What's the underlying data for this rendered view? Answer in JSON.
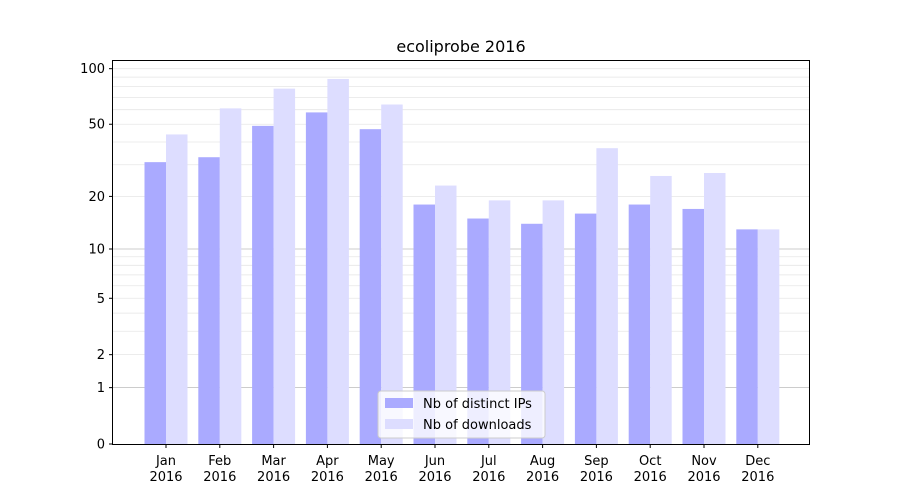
{
  "chart_data": {
    "type": "bar",
    "title": "ecoliprobe 2016",
    "xlabel": "",
    "ylabel": "",
    "categories": [
      [
        "Jan",
        "2016"
      ],
      [
        "Feb",
        "2016"
      ],
      [
        "Mar",
        "2016"
      ],
      [
        "Apr",
        "2016"
      ],
      [
        "May",
        "2016"
      ],
      [
        "Jun",
        "2016"
      ],
      [
        "Jul",
        "2016"
      ],
      [
        "Aug",
        "2016"
      ],
      [
        "Sep",
        "2016"
      ],
      [
        "Oct",
        "2016"
      ],
      [
        "Nov",
        "2016"
      ],
      [
        "Dec",
        "2016"
      ]
    ],
    "series": [
      {
        "name": "Nb of distinct IPs",
        "color": "#aaaaff",
        "values": [
          31,
          33,
          49,
          58,
          47,
          18,
          15,
          14,
          16,
          18,
          17,
          13
        ]
      },
      {
        "name": "Nb of downloads",
        "color": "#ddddff",
        "values": [
          44,
          61,
          78,
          88,
          64,
          23,
          19,
          19,
          37,
          26,
          27,
          13
        ]
      }
    ],
    "yscale": "log(1+y)",
    "ylim": [
      0,
      110
    ],
    "yticks": [
      0,
      1,
      2,
      5,
      10,
      20,
      50,
      100
    ],
    "legend_position": "bottom-center",
    "grid": "horizontal"
  }
}
